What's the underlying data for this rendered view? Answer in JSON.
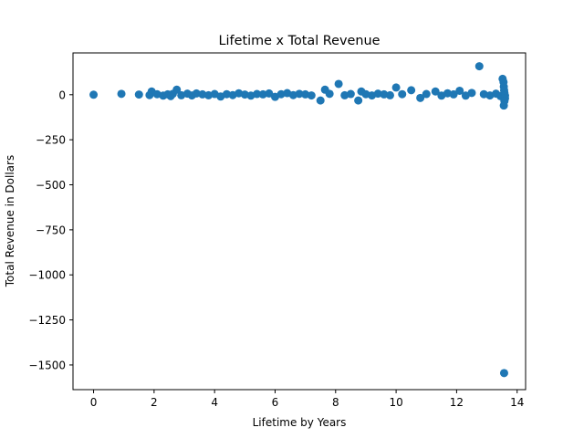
{
  "chart_data": {
    "type": "scatter",
    "title": "Lifetime x Total Revenue",
    "xlabel": "Lifetime by Years",
    "ylabel": "Total Revenue in Dollars",
    "xlim": [
      -0.68,
      14.28
    ],
    "ylim": [
      -1637,
      232
    ],
    "xticks": [
      0,
      2,
      4,
      6,
      8,
      10,
      12,
      14
    ],
    "yticks": [
      0,
      -250,
      -500,
      -750,
      -1000,
      -1250,
      -1500
    ],
    "ytick_labels": [
      "0",
      "−250",
      "−500",
      "−750",
      "−1000",
      "−1250",
      "−1500"
    ],
    "grid": false,
    "legend": "none",
    "marker_color": "#1f77b4",
    "points": [
      [
        0.0,
        0
      ],
      [
        0.92,
        5
      ],
      [
        1.5,
        1
      ],
      [
        1.85,
        -2
      ],
      [
        1.92,
        18
      ],
      [
        2.1,
        3
      ],
      [
        2.3,
        -5
      ],
      [
        2.45,
        2
      ],
      [
        2.55,
        -8
      ],
      [
        2.62,
        5
      ],
      [
        2.75,
        28
      ],
      [
        2.9,
        -3
      ],
      [
        3.1,
        6
      ],
      [
        3.25,
        -4
      ],
      [
        3.4,
        7
      ],
      [
        3.6,
        2
      ],
      [
        3.8,
        -3
      ],
      [
        4.0,
        4
      ],
      [
        4.2,
        -10
      ],
      [
        4.4,
        3
      ],
      [
        4.6,
        -2
      ],
      [
        4.8,
        8
      ],
      [
        5.0,
        1
      ],
      [
        5.2,
        -5
      ],
      [
        5.4,
        4
      ],
      [
        5.6,
        2
      ],
      [
        5.8,
        7
      ],
      [
        6.0,
        -12
      ],
      [
        6.2,
        3
      ],
      [
        6.4,
        9
      ],
      [
        6.6,
        -2
      ],
      [
        6.8,
        5
      ],
      [
        7.0,
        2
      ],
      [
        7.2,
        -4
      ],
      [
        7.5,
        -32
      ],
      [
        7.65,
        28
      ],
      [
        7.8,
        5
      ],
      [
        8.1,
        60
      ],
      [
        8.3,
        -3
      ],
      [
        8.5,
        4
      ],
      [
        8.75,
        -32
      ],
      [
        8.85,
        18
      ],
      [
        9.0,
        3
      ],
      [
        9.2,
        -4
      ],
      [
        9.4,
        6
      ],
      [
        9.6,
        2
      ],
      [
        9.8,
        -3
      ],
      [
        10.0,
        40
      ],
      [
        10.2,
        3
      ],
      [
        10.5,
        25
      ],
      [
        10.8,
        -18
      ],
      [
        11.0,
        4
      ],
      [
        11.3,
        18
      ],
      [
        11.5,
        -5
      ],
      [
        11.7,
        8
      ],
      [
        11.9,
        2
      ],
      [
        12.1,
        22
      ],
      [
        12.3,
        -5
      ],
      [
        12.5,
        10
      ],
      [
        12.75,
        158
      ],
      [
        12.9,
        3
      ],
      [
        13.1,
        -4
      ],
      [
        13.3,
        6
      ],
      [
        13.45,
        -8
      ],
      [
        13.52,
        88
      ],
      [
        13.55,
        70
      ],
      [
        13.56,
        45
      ],
      [
        13.57,
        25
      ],
      [
        13.58,
        10
      ],
      [
        13.6,
        -5
      ],
      [
        13.6,
        -20
      ],
      [
        13.58,
        -35
      ],
      [
        13.56,
        -60
      ],
      [
        13.57,
        -1545
      ]
    ]
  }
}
